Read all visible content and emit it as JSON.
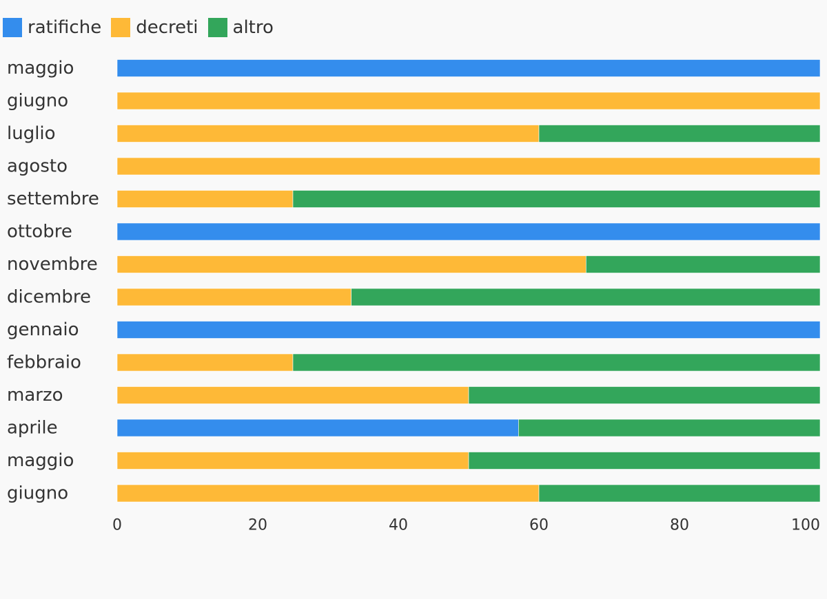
{
  "chart_data": {
    "type": "bar",
    "orientation": "horizontal",
    "stacked": true,
    "categories": [
      "maggio",
      "giugno",
      "luglio",
      "agosto",
      "settembre",
      "ottobre",
      "novembre",
      "dicembre",
      "gennaio",
      "febbraio",
      "marzo",
      "aprile",
      "maggio",
      "giugno"
    ],
    "series": [
      {
        "name": "ratifiche",
        "color": "#348ded",
        "values": [
          100,
          0,
          0,
          0,
          0,
          100,
          0,
          0,
          100,
          0,
          0,
          57.1,
          0,
          0
        ]
      },
      {
        "name": "decreti",
        "color": "#feb937",
        "values": [
          0,
          100,
          60,
          100,
          25,
          0,
          66.7,
          33.3,
          0,
          25,
          50,
          0,
          50,
          60
        ]
      },
      {
        "name": "altro",
        "color": "#33a65b",
        "values": [
          0,
          0,
          40,
          0,
          75,
          0,
          33.3,
          66.7,
          0,
          75,
          50,
          42.9,
          50,
          40
        ]
      }
    ],
    "xlim": [
      0,
      100
    ],
    "xticks": [
      "0",
      "20",
      "40",
      "60",
      "80",
      "100"
    ],
    "grid": false,
    "legend_position": "top-left",
    "title": "",
    "xlabel": "",
    "ylabel": ""
  }
}
